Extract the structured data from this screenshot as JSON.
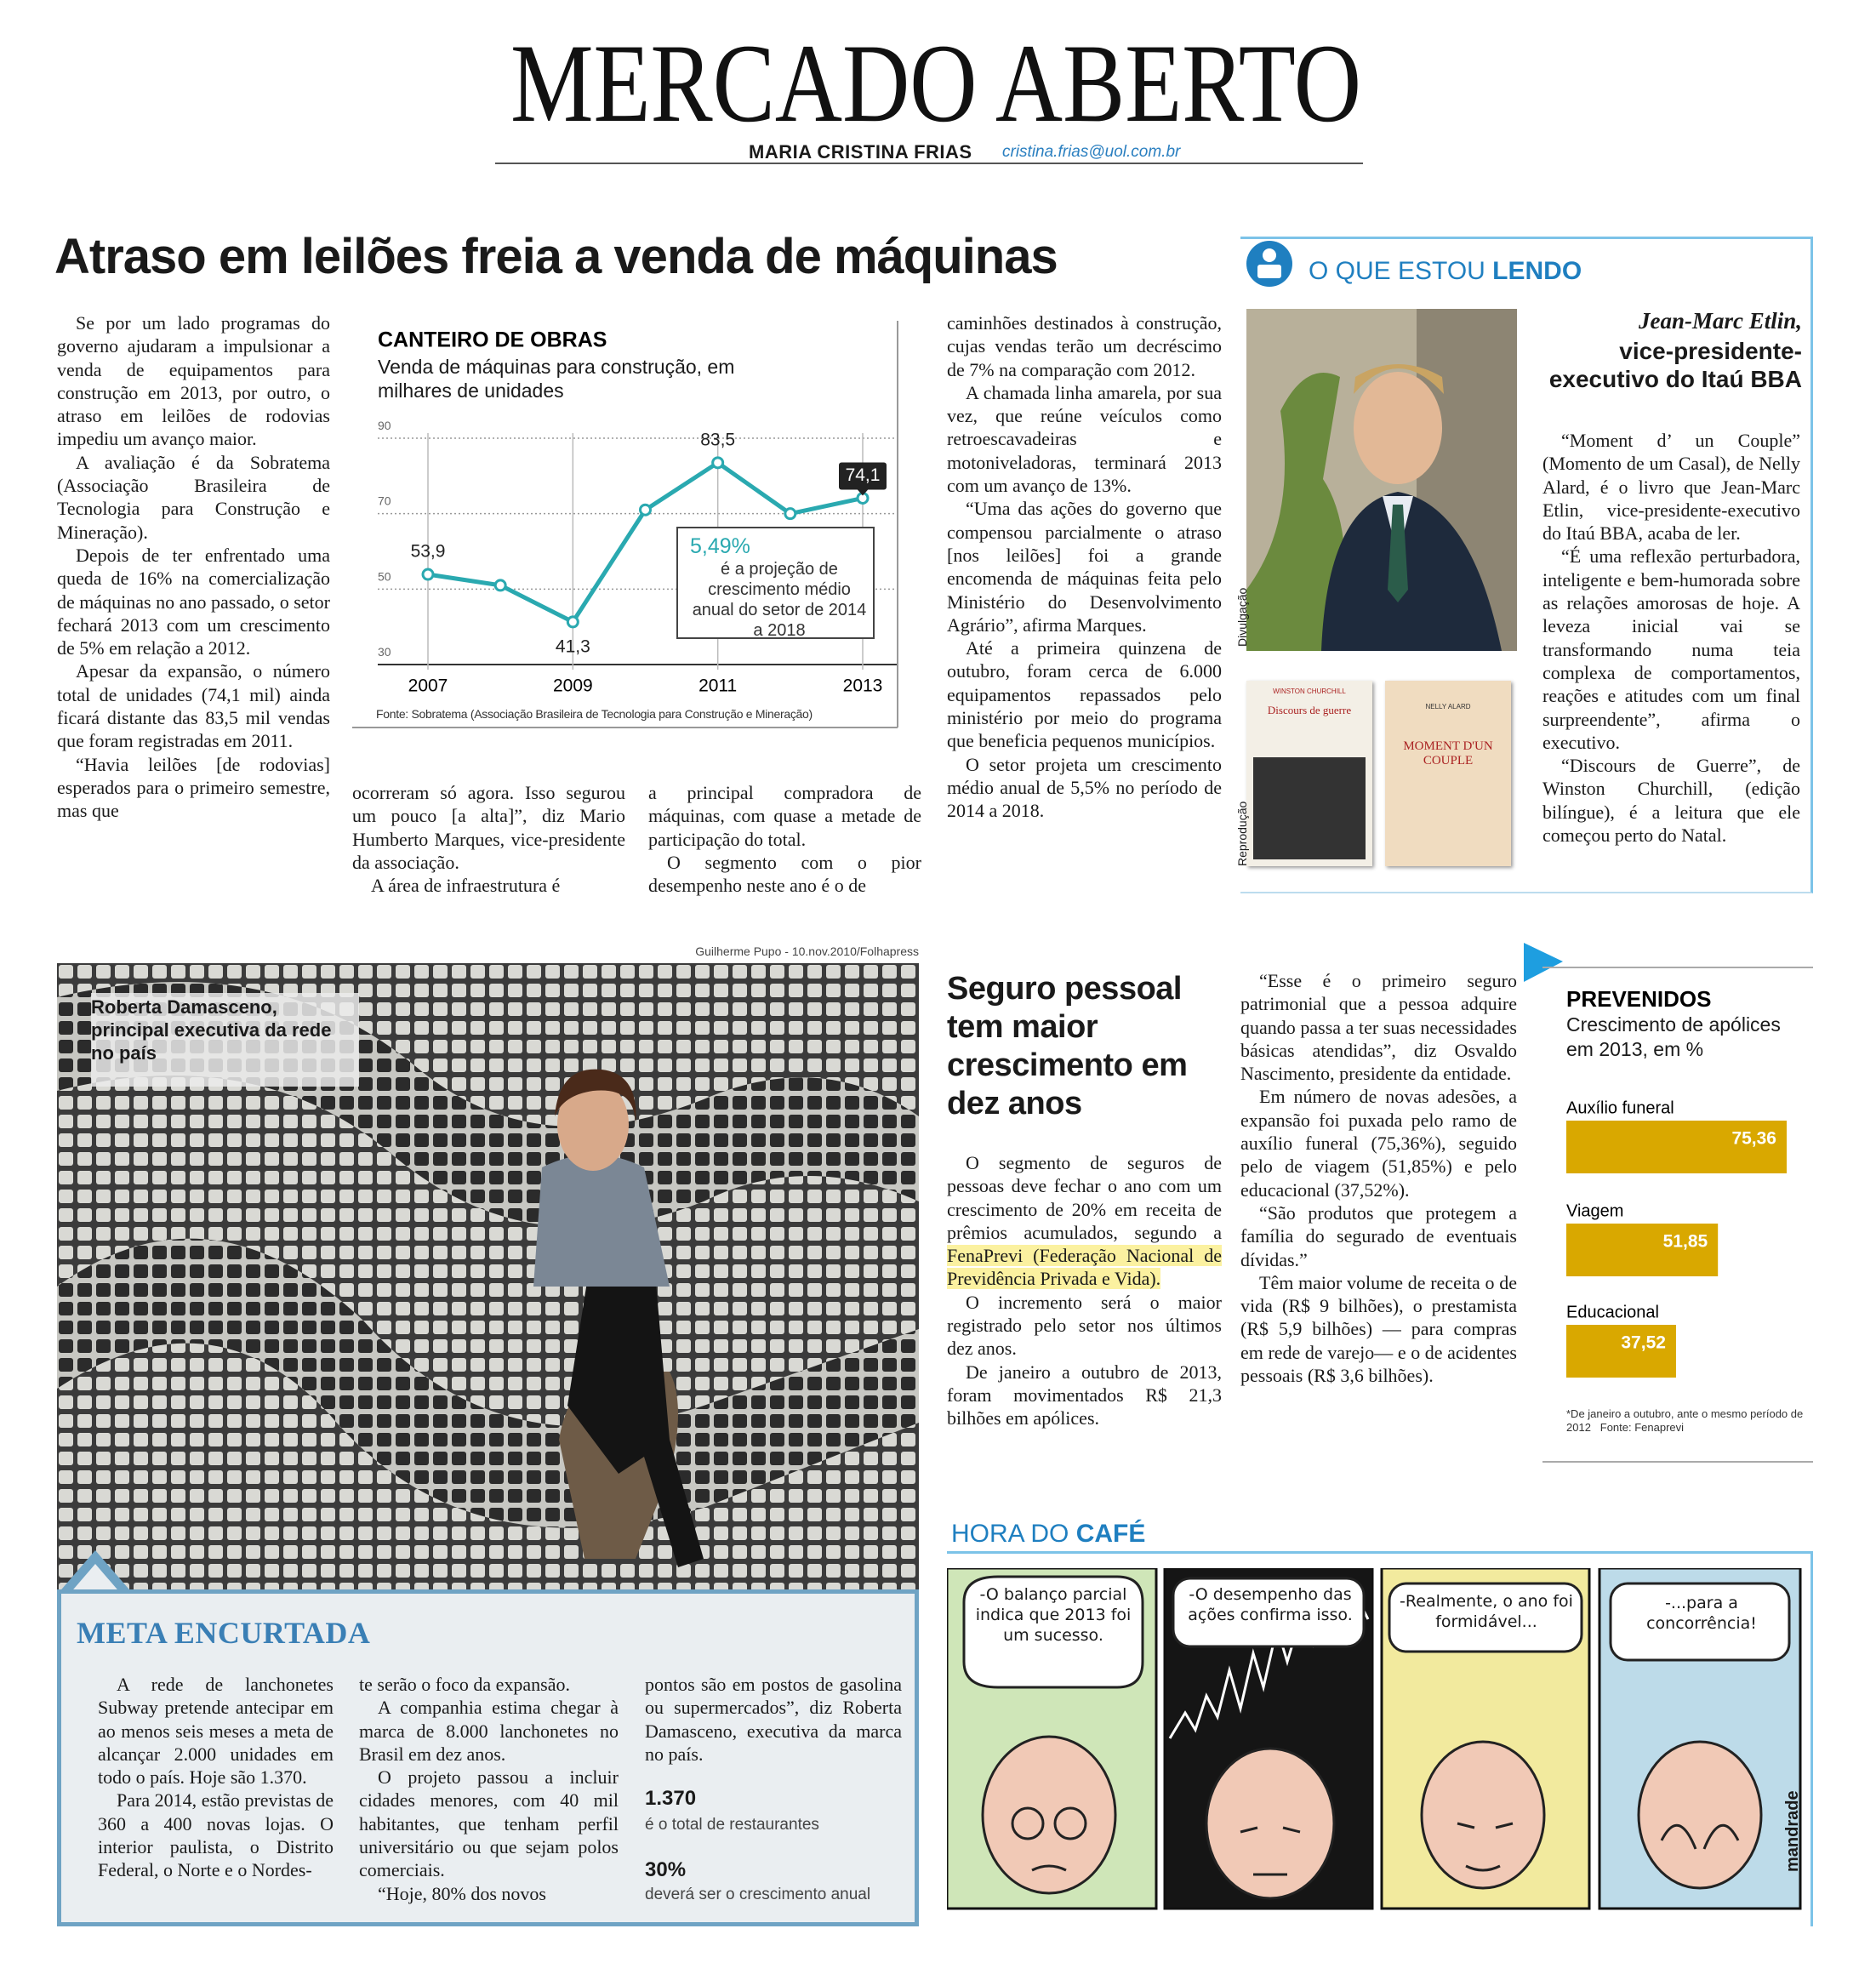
{
  "header": {
    "title": "MERCADO ABERTO",
    "author": "MARIA CRISTINA FRIAS",
    "email": "cristina.frias@uol.com.br"
  },
  "main_article": {
    "headline": "Atraso em leilões freia a venda de máquinas",
    "columns": [
      [
        "Se por um lado programas do governo ajudaram a impulsionar a venda de equipamentos para construção em 2013, por outro, o atraso em leilões de rodovias impediu um avanço maior.",
        "A avaliação é da Sobratema (Associação Brasileira de Tecnologia para Construção e Mineração).",
        "Depois de ter enfrentado uma queda de 16% na comercialização de máquinas no ano passado, o setor fechará 2013 com um crescimento de 5% em relação a 2012.",
        "Apesar da expansão, o número total de unidades (74,1 mil) ainda ficará distante das 83,5 mil vendas que foram registradas em 2011.",
        "“Havia leilões [de rodovias] esperados para o primeiro semestre, mas que"
      ],
      [
        "ocorreram só agora. Isso segurou um pouco [a alta]”, diz Mario Humberto Marques, vice-presidente da associação.",
        "A área de infraestrutura é"
      ],
      [
        "a principal compradora de máquinas, com quase a metade de participação do total.",
        "O segmento com o pior desempenho neste ano é o de"
      ],
      [
        "caminhões destinados à construção, cujas vendas terão um decréscimo de 7% na comparação com 2012.",
        "A chamada linha amarela, por sua vez, que reúne veículos como retroescavadeiras e motoniveladoras, terminará 2013 com um avanço de 13%.",
        "“Uma das ações do governo que compensou parcialmente o atraso [nos leilões] foi a grande encomenda de máquinas feita pelo Ministério do Desenvolvimento Agrário”, afirma Marques.",
        "Até a primeira quinzena de outubro, foram cerca de 6.000 equipamentos repassados pelo ministério por meio do programa que beneficia pequenos municípios.",
        "O setor projeta um crescimento médio anual de 5,5% no período de 2014 a 2018."
      ]
    ]
  },
  "chart_data": [
    {
      "type": "line",
      "title": "CANTEIRO DE OBRAS",
      "subtitle": "Venda de máquinas para construção, em milhares de unidades",
      "categories": [
        "2007",
        null,
        "2009",
        null,
        "2011",
        null,
        "2013"
      ],
      "values": [
        53.9,
        51,
        41.3,
        71,
        83.5,
        70,
        74.1
      ],
      "value_labels": [
        "53,9",
        null,
        "41,3",
        null,
        "83,5",
        null,
        "74,1"
      ],
      "color": "#2aa9b0",
      "ylim": [
        30,
        90
      ],
      "yticks": [
        30,
        50,
        70,
        90
      ],
      "grid": true,
      "annotation": {
        "figure": "5,49%",
        "text": "é a projeção de crescimento médio anual do setor de 2014 a 2018"
      },
      "source": "Fonte: Sobratema (Associação Brasileira de Tecnologia para Construção e Mineração)"
    },
    {
      "type": "bar",
      "orientation": "horizontal",
      "title": "PREVENIDOS",
      "subtitle": "Crescimento de apólices em 2013, em %",
      "categories": [
        "Auxílio funeral",
        "Viagem",
        "Educacional"
      ],
      "values": [
        75.36,
        51.85,
        37.52
      ],
      "value_labels": [
        "75,36",
        "51,85",
        "37,52"
      ],
      "color": "#d9a800",
      "note": "*De janeiro a outubro, ante o mesmo período de 2012",
      "source": "Fonte: Fenaprevi"
    }
  ],
  "reading": {
    "title_light": "O QUE ESTOU",
    "title_bold": "LENDO",
    "name": "Jean-Marc Etlin,",
    "role": "vice-presidente-executivo do Itaú BBA",
    "photo_credit": "Divulgação",
    "books_credit": "Reprodução",
    "book_1": {
      "author": "WINSTON CHURCHILL",
      "title": "Discours de guerre"
    },
    "book_2": {
      "author": "NELLY ALARD",
      "title": "MOMENT D'UN COUPLE"
    },
    "paragraphs": [
      "“Moment d’ un Couple” (Momento de um Casal), de Nelly Alard, é o livro que Jean-Marc Etlin, vice-presidente-executivo do Itaú BBA, acaba de ler.",
      "“É uma reflexão perturbadora, inteligente e bem-humorada sobre as relações amorosas de hoje. A leveza inicial vai se transformando numa teia complexa de comportamentos, reações e atitudes com um final surpreendente”, afirma o executivo.",
      "“Discours de Guerre”, de Winston Churchill, (edição bilíngue), é a leitura que ele começou perto do Natal."
    ]
  },
  "photo": {
    "credit": "Guilherme Pupo - 10.nov.2010/Folhapress",
    "caption": "Roberta Damasceno, principal executiva da rede no país"
  },
  "meta_box": {
    "title": "META ENCURTADA",
    "columns": [
      [
        "A rede de lanchonetes Subway pretende antecipar em ao menos seis meses a meta de alcançar 2.000 unidades em todo o país. Hoje são 1.370.",
        "Para 2014, estão previstas de 360 a 400 novas lojas. O interior paulista, o Distrito Federal, o Norte e o Nordes-"
      ],
      [
        "te serão o foco da expansão.",
        "A companhia estima chegar à marca de 8.000 lanchonetes no Brasil em dez anos.",
        "O projeto passou a incluir cidades menores, com 40 mil habitantes, que tenham perfil universitário ou que sejam polos comerciais.",
        "“Hoje, 80% dos novos"
      ],
      [
        "pontos são em postos de gasolina ou supermercados”, diz Roberta Damasceno, executiva da marca no país."
      ]
    ],
    "stats": [
      {
        "figure": "1.370",
        "text": "é o total de restaurantes"
      },
      {
        "figure": "30%",
        "text": "deverá ser o crescimento anual"
      }
    ]
  },
  "insurance_article": {
    "headline": "Seguro pessoal tem maior crescimento em dez anos",
    "lead": "O segmento de seguros de pessoas deve fechar o ano com um crescimento de 20% em receita de prêmios acumulados, segundo a",
    "highlight": "FenaPrevi (Federação Nacional de Previdência Privada e Vida).",
    "columns": [
      [
        "O incremento será o maior registrado pelo setor nos últimos dez anos.",
        "De janeiro a outubro de 2013, foram movimentados R$ 21,3 bilhões em apólices."
      ],
      [
        "“Esse é o primeiro seguro patrimonial que a pessoa adquire quando passa a ter suas necessidades básicas atendidas”, diz Osvaldo Nascimento, presidente da entidade.",
        "Em número de novas adesões, a expansão foi puxada pelo ramo de auxílio funeral (75,36%), seguido pelo de viagem (51,85%) e pelo educacional (37,52%).",
        "“São produtos que protegem a família do segurado de eventuais dívidas.”",
        "Têm maior volume de receita o de vida (R$ 9 bilhões), o prestamista (R$ 5,9 bilhões) — para compras em rede de varejo— e o de acidentes pessoais (R$ 3,6 bilhões)."
      ]
    ]
  },
  "cartoon": {
    "title_light": "HORA DO",
    "title_bold": "CAFÉ",
    "panels": [
      "-O balanço parcial indica que 2013 foi um sucesso.",
      "-O desempenho das ações confirma isso.",
      "-Realmente, o ano foi formidável...",
      "-...para a concorrência!"
    ],
    "signature": "mandrade"
  }
}
